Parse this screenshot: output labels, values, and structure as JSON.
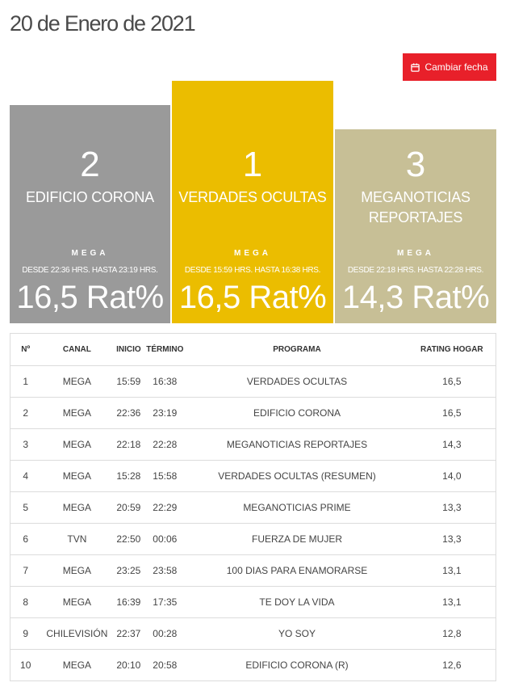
{
  "page": {
    "title": "20 de Enero de 2021"
  },
  "button": {
    "label": "Cambiar fecha",
    "icon": "calendar-icon"
  },
  "colors": {
    "accent": "#e8202a",
    "first": "#ebbd00",
    "second": "#9a9a9a",
    "third": "#c7bf96"
  },
  "podium": {
    "second": {
      "rank": "2",
      "program": "EDIFICIO CORONA",
      "channel": "MEGA",
      "hours": "DESDE 22:36 HRS. HASTA 23:19 HRS.",
      "rating": "16,5 Rat%"
    },
    "first": {
      "rank": "1",
      "program": "VERDADES OCULTAS",
      "channel": "MEGA",
      "hours": "DESDE 15:59 HRS. HASTA 16:38 HRS.",
      "rating": "16,5 Rat%"
    },
    "third": {
      "rank": "3",
      "program": "MEGANOTICIAS REPORTAJES",
      "channel": "MEGA",
      "hours": "DESDE 22:18 HRS. HASTA 22:28 HRS.",
      "rating": "14,3 Rat%"
    }
  },
  "table": {
    "headers": {
      "no": "Nº",
      "canal": "CANAL",
      "inicio": "INICIO",
      "termino": "TÉRMINO",
      "programa": "PROGRAMA",
      "rating": "RATING HOGAR"
    },
    "rows": [
      {
        "no": "1",
        "canal": "MEGA",
        "inicio": "15:59",
        "termino": "16:38",
        "programa": "VERDADES OCULTAS",
        "rating": "16,5"
      },
      {
        "no": "2",
        "canal": "MEGA",
        "inicio": "22:36",
        "termino": "23:19",
        "programa": "EDIFICIO CORONA",
        "rating": "16,5"
      },
      {
        "no": "3",
        "canal": "MEGA",
        "inicio": "22:18",
        "termino": "22:28",
        "programa": "MEGANOTICIAS REPORTAJES",
        "rating": "14,3"
      },
      {
        "no": "4",
        "canal": "MEGA",
        "inicio": "15:28",
        "termino": "15:58",
        "programa": "VERDADES OCULTAS (RESUMEN)",
        "rating": "14,0"
      },
      {
        "no": "5",
        "canal": "MEGA",
        "inicio": "20:59",
        "termino": "22:29",
        "programa": "MEGANOTICIAS PRIME",
        "rating": "13,3"
      },
      {
        "no": "6",
        "canal": "TVN",
        "inicio": "22:50",
        "termino": "00:06",
        "programa": "FUERZA DE MUJER",
        "rating": "13,3"
      },
      {
        "no": "7",
        "canal": "MEGA",
        "inicio": "23:25",
        "termino": "23:58",
        "programa": "100 DIAS PARA ENAMORARSE",
        "rating": "13,1"
      },
      {
        "no": "8",
        "canal": "MEGA",
        "inicio": "16:39",
        "termino": "17:35",
        "programa": "TE DOY LA VIDA",
        "rating": "13,1"
      },
      {
        "no": "9",
        "canal": "CHILEVISIÓN",
        "inicio": "22:37",
        "termino": "00:28",
        "programa": "YO SOY",
        "rating": "12,8"
      },
      {
        "no": "10",
        "canal": "MEGA",
        "inicio": "20:10",
        "termino": "20:58",
        "programa": "EDIFICIO CORONA (R)",
        "rating": "12,6"
      }
    ]
  }
}
